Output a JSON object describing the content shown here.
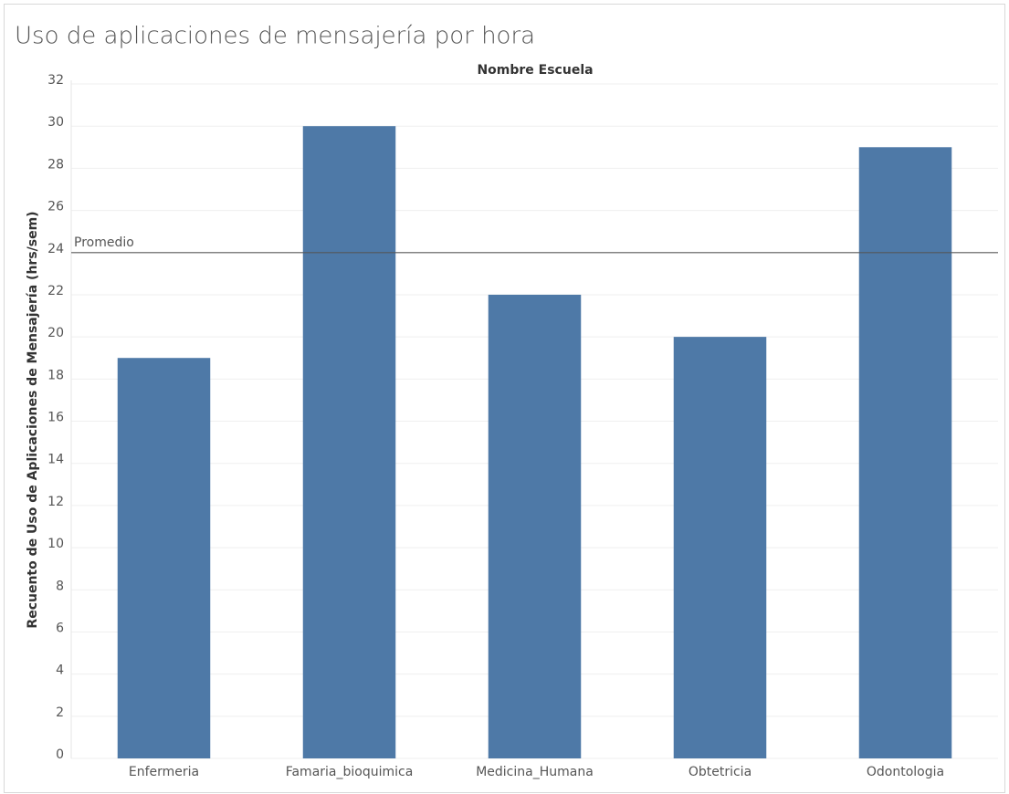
{
  "chart_data": {
    "type": "bar",
    "title": "Uso de aplicaciones de mensajería por hora",
    "x_header": "Nombre Escuela",
    "y_label": "Recuento de Uso de Aplicaciones de Mensajería (hrs/sem)",
    "categories": [
      "Enfermeria",
      "Famaria_bioquimica",
      "Medicina_Humana",
      "Obtetricia",
      "Odontologia"
    ],
    "values": [
      19,
      30,
      22,
      20,
      29
    ],
    "color": "#4e79a7",
    "ylim": [
      0,
      32
    ],
    "yticks": [
      0,
      2,
      4,
      6,
      8,
      10,
      12,
      14,
      16,
      18,
      20,
      22,
      24,
      26,
      28,
      30,
      32
    ],
    "grid": true,
    "reference_line": {
      "label": "Promedio",
      "value": 24
    }
  }
}
